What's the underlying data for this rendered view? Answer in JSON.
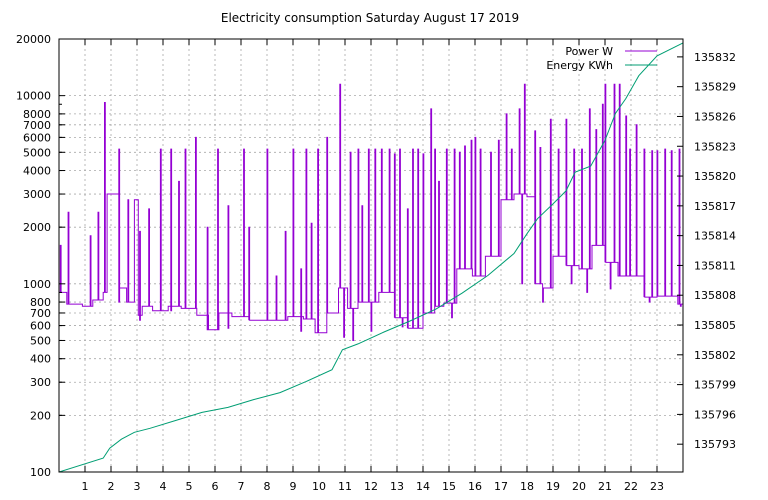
{
  "chart_data": {
    "type": "line",
    "title": "Electricity consumption Saturday August 17 2019",
    "x": {
      "min": 0,
      "max": 24,
      "ticks": [
        1,
        2,
        3,
        4,
        5,
        6,
        7,
        8,
        9,
        10,
        11,
        12,
        13,
        14,
        15,
        16,
        17,
        18,
        19,
        20,
        21,
        22,
        23
      ],
      "tick_labels": [
        "1",
        "2",
        "3",
        "4",
        "5",
        "6",
        "7",
        "8",
        "9",
        "10",
        "11",
        "12",
        "13",
        "14",
        "15",
        "16",
        "17",
        "18",
        "19",
        "20",
        "21",
        "22",
        "23"
      ]
    },
    "y_left": {
      "scale": "log",
      "min": 100,
      "max": 20000,
      "ticks": [
        100,
        200,
        300,
        400,
        500,
        600,
        700,
        800,
        1000,
        2000,
        3000,
        4000,
        5000,
        6000,
        7000,
        8000,
        10000,
        20000
      ],
      "tick_labels": [
        "100",
        "200",
        "300",
        "400",
        "500",
        "600",
        "700",
        "800",
        "1000",
        "2000",
        "3000",
        "4000",
        "5000",
        "6000",
        "7000",
        "8000",
        "10000",
        "20000"
      ]
    },
    "y_right": {
      "scale": "linear",
      "min": 135790.2,
      "max": 135833.8,
      "ticks": [
        135793,
        135796,
        135799,
        135802,
        135805,
        135808,
        135811,
        135814,
        135817,
        135820,
        135823,
        135826,
        135829,
        135832
      ],
      "tick_labels": [
        "135793",
        "135796",
        "135799",
        "135802",
        "135805",
        "135808",
        "135811",
        "135814",
        "135817",
        "135820",
        "135823",
        "135826",
        "135829",
        "135832"
      ]
    },
    "grid": true,
    "legend_position": "top-right",
    "series": [
      {
        "name": "Power W",
        "axis": "left",
        "color": "#9400d3",
        "step": true,
        "base": [
          [
            0,
            900
          ],
          [
            0.3,
            780
          ],
          [
            0.9,
            760
          ],
          [
            1.3,
            820
          ],
          [
            1.7,
            900
          ],
          [
            1.85,
            3000
          ],
          [
            2.3,
            950
          ],
          [
            2.6,
            800
          ],
          [
            2.9,
            2800
          ],
          [
            3.05,
            680
          ],
          [
            3.2,
            760
          ],
          [
            3.6,
            720
          ],
          [
            4.2,
            760
          ],
          [
            4.7,
            740
          ],
          [
            5.3,
            680
          ],
          [
            5.75,
            570
          ],
          [
            6.15,
            700
          ],
          [
            6.65,
            670
          ],
          [
            7.3,
            640
          ],
          [
            8.1,
            640
          ],
          [
            8.8,
            670
          ],
          [
            9.4,
            650
          ],
          [
            9.85,
            550
          ],
          [
            10.3,
            700
          ],
          [
            10.75,
            950
          ],
          [
            11.1,
            740
          ],
          [
            11.5,
            800
          ],
          [
            12.3,
            900
          ],
          [
            12.9,
            660
          ],
          [
            13.4,
            580
          ],
          [
            14.0,
            700
          ],
          [
            14.45,
            760
          ],
          [
            14.8,
            790
          ],
          [
            15.3,
            1200
          ],
          [
            15.9,
            1100
          ],
          [
            16.4,
            1400
          ],
          [
            17.0,
            2800
          ],
          [
            17.5,
            3000
          ],
          [
            18.0,
            2900
          ],
          [
            18.3,
            1000
          ],
          [
            18.6,
            950
          ],
          [
            19.0,
            1400
          ],
          [
            19.5,
            1250
          ],
          [
            20.0,
            1200
          ],
          [
            20.5,
            1600
          ],
          [
            21.0,
            1300
          ],
          [
            21.5,
            1100
          ],
          [
            22.0,
            1100
          ],
          [
            22.5,
            850
          ],
          [
            23.0,
            860
          ],
          [
            23.45,
            860
          ],
          [
            23.8,
            780
          ]
        ],
        "spikes": [
          [
            0.05,
            1600
          ],
          [
            0.35,
            2400
          ],
          [
            1.2,
            1800
          ],
          [
            1.5,
            2400
          ],
          [
            1.75,
            9200
          ],
          [
            2.3,
            5200
          ],
          [
            2.65,
            2800
          ],
          [
            3.1,
            1900
          ],
          [
            3.45,
            2500
          ],
          [
            3.9,
            5200
          ],
          [
            4.3,
            5200
          ],
          [
            4.6,
            3500
          ],
          [
            4.85,
            5200
          ],
          [
            5.25,
            6000
          ],
          [
            5.7,
            2000
          ],
          [
            6.1,
            5200
          ],
          [
            6.5,
            2600
          ],
          [
            7.1,
            5200
          ],
          [
            7.3,
            2000
          ],
          [
            8.0,
            5200
          ],
          [
            8.35,
            1100
          ],
          [
            8.7,
            1900
          ],
          [
            9.0,
            5200
          ],
          [
            9.3,
            1200
          ],
          [
            9.5,
            5200
          ],
          [
            9.7,
            2100
          ],
          [
            9.95,
            5200
          ],
          [
            10.3,
            6000
          ],
          [
            10.8,
            11500
          ],
          [
            11.2,
            5000
          ],
          [
            11.5,
            5200
          ],
          [
            11.65,
            2600
          ],
          [
            11.9,
            5200
          ],
          [
            12.15,
            5200
          ],
          [
            12.4,
            5200
          ],
          [
            12.7,
            5200
          ],
          [
            12.9,
            4900
          ],
          [
            13.1,
            5200
          ],
          [
            13.4,
            2500
          ],
          [
            13.6,
            5200
          ],
          [
            13.8,
            5200
          ],
          [
            14.0,
            4900
          ],
          [
            14.3,
            8500
          ],
          [
            14.45,
            5200
          ],
          [
            14.6,
            3500
          ],
          [
            14.9,
            5200
          ],
          [
            15.2,
            5200
          ],
          [
            15.4,
            5000
          ],
          [
            15.6,
            5400
          ],
          [
            15.85,
            5800
          ],
          [
            16.0,
            6000
          ],
          [
            16.2,
            5200
          ],
          [
            16.6,
            5000
          ],
          [
            16.9,
            5800
          ],
          [
            17.2,
            8000
          ],
          [
            17.4,
            5200
          ],
          [
            17.7,
            8500
          ],
          [
            17.9,
            11500
          ],
          [
            18.3,
            6500
          ],
          [
            18.5,
            5300
          ],
          [
            18.9,
            7500
          ],
          [
            19.2,
            5200
          ],
          [
            19.5,
            7500
          ],
          [
            19.8,
            5200
          ],
          [
            20.1,
            5200
          ],
          [
            20.4,
            8500
          ],
          [
            20.65,
            6600
          ],
          [
            20.9,
            9000
          ],
          [
            21.0,
            11500
          ],
          [
            21.35,
            11500
          ],
          [
            21.55,
            11500
          ],
          [
            21.8,
            7800
          ],
          [
            21.95,
            5200
          ],
          [
            22.2,
            7000
          ],
          [
            22.5,
            5200
          ],
          [
            22.8,
            5100
          ],
          [
            23.0,
            5100
          ],
          [
            23.3,
            5200
          ],
          [
            23.55,
            5100
          ],
          [
            23.85,
            5200
          ]
        ],
        "dips": [
          [
            2.3,
            800
          ],
          [
            3.1,
            640
          ],
          [
            4.3,
            720
          ],
          [
            5.7,
            570
          ],
          [
            6.5,
            580
          ],
          [
            9.3,
            560
          ],
          [
            10.95,
            520
          ],
          [
            11.3,
            500
          ],
          [
            12.0,
            560
          ],
          [
            13.2,
            590
          ],
          [
            15.1,
            660
          ],
          [
            17.8,
            1000
          ],
          [
            18.6,
            800
          ],
          [
            19.7,
            1000
          ],
          [
            20.3,
            900
          ],
          [
            21.2,
            940
          ],
          [
            22.7,
            800
          ],
          [
            23.9,
            760
          ]
        ]
      },
      {
        "name": "Energy KWh",
        "axis": "right",
        "color": "#009e73",
        "step": false,
        "points": [
          [
            0,
            135790.2
          ],
          [
            1.7,
            135791.6
          ],
          [
            1.95,
            135792.6
          ],
          [
            2.4,
            135793.5
          ],
          [
            2.9,
            135794.2
          ],
          [
            3.5,
            135794.6
          ],
          [
            4.5,
            135795.4
          ],
          [
            5.5,
            135796.2
          ],
          [
            6.5,
            135796.7
          ],
          [
            7.5,
            135797.5
          ],
          [
            8.5,
            135798.2
          ],
          [
            9.5,
            135799.3
          ],
          [
            10.5,
            135800.5
          ],
          [
            10.9,
            135802.5
          ],
          [
            11.5,
            135803.1
          ],
          [
            12.5,
            135804.3
          ],
          [
            13.5,
            135805.4
          ],
          [
            14.5,
            135806.6
          ],
          [
            15.5,
            135808.2
          ],
          [
            16.5,
            135810.0
          ],
          [
            17.5,
            135812.2
          ],
          [
            18.0,
            135814.2
          ],
          [
            18.4,
            135815.7
          ],
          [
            19.0,
            135817.2
          ],
          [
            19.5,
            135818.5
          ],
          [
            19.85,
            135820.4
          ],
          [
            20.45,
            135821.0
          ],
          [
            21.0,
            135823.6
          ],
          [
            21.4,
            135826.3
          ],
          [
            21.8,
            135827.8
          ],
          [
            22.3,
            135830.1
          ],
          [
            23.0,
            135832.1
          ],
          [
            24.0,
            135833.4
          ]
        ]
      }
    ]
  }
}
